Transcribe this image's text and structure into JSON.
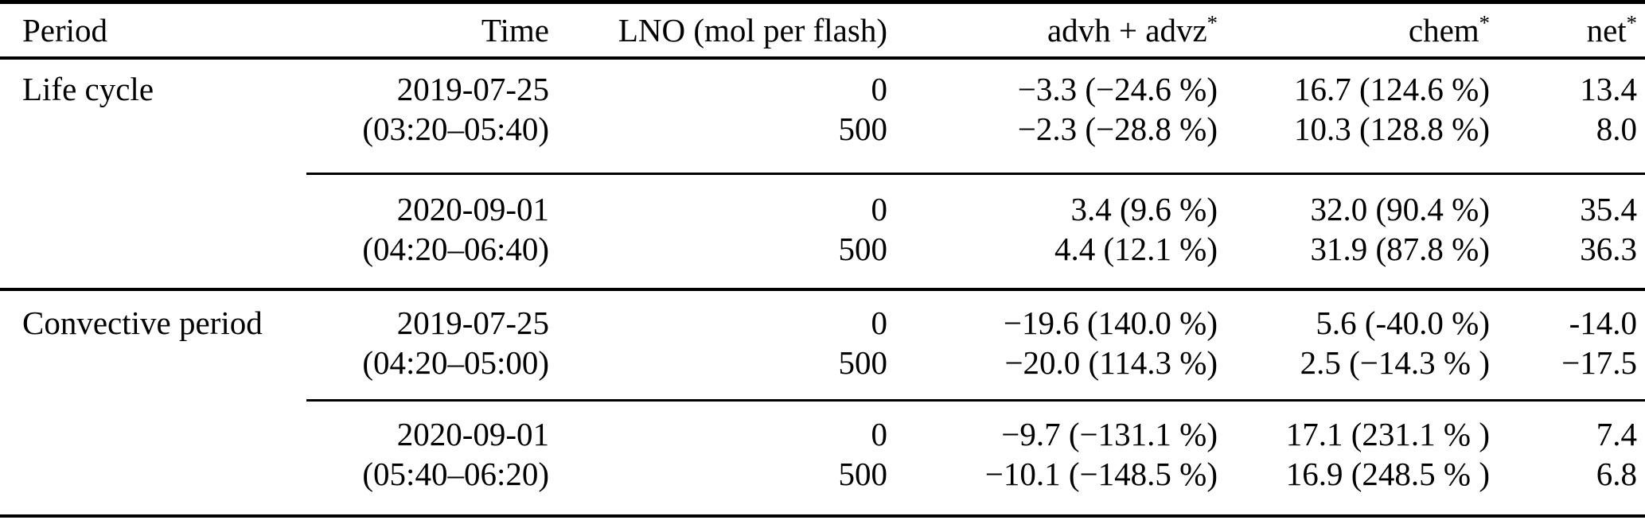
{
  "colors": {
    "text": "#000000",
    "background": "#ffffff",
    "rule": "#000000"
  },
  "table": {
    "header": {
      "period": "Period",
      "time": "Time",
      "lno": "LNO (mol per flash)",
      "advh_base": "advh + advz",
      "advh_sup": "*",
      "chem_base": "chem",
      "chem_sup": "*",
      "net_base": "net",
      "net_sup": "*"
    },
    "rows": [
      {
        "period": "Life cycle",
        "time": "2019-07-25",
        "lno": "0",
        "advh": "−3.3 (−24.6 %)",
        "chem": "16.7 (124.6 %)",
        "net": "13.4"
      },
      {
        "period": "",
        "time": "(03:20–05:40)",
        "lno": "500",
        "advh": "−2.3 (−28.8 %)",
        "chem": "10.3 (128.8 %)",
        "net": "8.0"
      },
      {
        "period": "",
        "time": "2020-09-01",
        "lno": "0",
        "advh": "3.4 (9.6 %)",
        "chem": "32.0 (90.4 %)",
        "net": "35.4"
      },
      {
        "period": "",
        "time": "(04:20–06:40)",
        "lno": "500",
        "advh": "4.4 (12.1 %)",
        "chem": "31.9 (87.8 %)",
        "net": "36.3"
      },
      {
        "period": "Convective period",
        "time": "2019-07-25",
        "lno": "0",
        "advh": "−19.6 (140.0 %)",
        "chem": "5.6 (-40.0 %)",
        "net": "-14.0"
      },
      {
        "period": "",
        "time": "(04:20–05:00)",
        "lno": "500",
        "advh": "−20.0 (114.3 %)",
        "chem": "2.5 (−14.3 % )",
        "net": "−17.5"
      },
      {
        "period": "",
        "time": "2020-09-01",
        "lno": "0",
        "advh": "−9.7 (−131.1 %)",
        "chem": "17.1 (231.1 % )",
        "net": "7.4"
      },
      {
        "period": "",
        "time": "(05:40–06:20)",
        "lno": "500",
        "advh": "−10.1 (−148.5 %)",
        "chem": "16.9 (248.5 % )",
        "net": "6.8"
      }
    ]
  }
}
